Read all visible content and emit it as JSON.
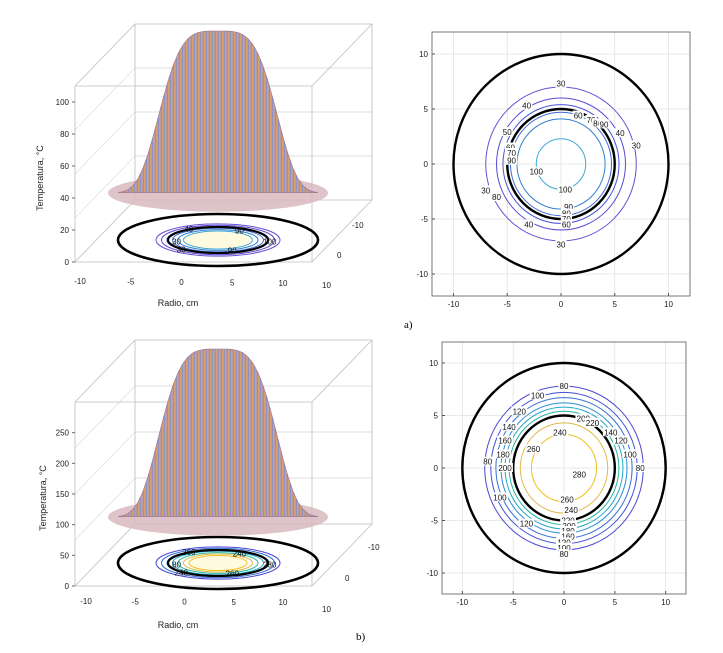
{
  "panel_labels": [
    "a)",
    "b)"
  ],
  "chart_data": [
    {
      "id": "a-surface",
      "type": "surface3d",
      "xlabel": "Radio, cm",
      "zlabel": "Temperatura, °C",
      "x_ticks": [
        "-10",
        "-5",
        "0",
        "5",
        "10"
      ],
      "y_ticks": [
        "-10",
        "0",
        "10"
      ],
      "z_ticks": [
        "0",
        "20",
        "40",
        "60",
        "80",
        "100"
      ],
      "zlim": [
        0,
        110
      ],
      "peak": 100,
      "contour_labels": [
        "30",
        "40",
        "90",
        "100",
        "90",
        "30"
      ]
    },
    {
      "id": "a-contour",
      "type": "contour",
      "xlim": [
        -12,
        12
      ],
      "ylim": [
        -12,
        12
      ],
      "x_ticks": [
        "-10",
        "-5",
        "0",
        "5",
        "10"
      ],
      "y_ticks": [
        "10",
        "5",
        "0",
        "-5",
        "-10"
      ],
      "outer_radius": 10,
      "inner_radius": 5,
      "grid": true,
      "levels": [
        {
          "r": 2.3,
          "color": "#3fa9d6"
        },
        {
          "r": 4.1,
          "color": "#2f7fcf"
        },
        {
          "r": 4.7,
          "color": "#3d6ad6"
        },
        {
          "r": 5.4,
          "color": "#4a55d8"
        },
        {
          "r": 6.0,
          "color": "#5a4ad6"
        },
        {
          "r": 7.0,
          "color": "#6b4fd2"
        }
      ],
      "labels": [
        {
          "text": "30",
          "x": 0,
          "y": 7.3
        },
        {
          "text": "40",
          "x": -3.2,
          "y": 5.3
        },
        {
          "text": "60",
          "x": 1.6,
          "y": 4.4
        },
        {
          "text": "70",
          "x": 2.8,
          "y": 4.0
        },
        {
          "text": "80",
          "x": 3.4,
          "y": 3.7
        },
        {
          "text": "90",
          "x": 4.0,
          "y": 3.6
        },
        {
          "text": "40",
          "x": 5.5,
          "y": 2.8
        },
        {
          "text": "30",
          "x": 7.0,
          "y": 1.7
        },
        {
          "text": "50",
          "x": -5.0,
          "y": 2.9
        },
        {
          "text": "60",
          "x": -4.7,
          "y": 1.5
        },
        {
          "text": "70",
          "x": -4.6,
          "y": 1.0
        },
        {
          "text": "90",
          "x": -4.6,
          "y": 0.3
        },
        {
          "text": "100",
          "x": -2.3,
          "y": -0.7
        },
        {
          "text": "100",
          "x": 0.4,
          "y": -2.3
        },
        {
          "text": "90",
          "x": 0.7,
          "y": -3.9
        },
        {
          "text": "80",
          "x": 0.5,
          "y": -4.5
        },
        {
          "text": "70",
          "x": 0.5,
          "y": -5.0
        },
        {
          "text": "60",
          "x": 0.5,
          "y": -5.5
        },
        {
          "text": "80",
          "x": -6.0,
          "y": -3.0
        },
        {
          "text": "30",
          "x": -7.0,
          "y": -2.4
        },
        {
          "text": "40",
          "x": -3.0,
          "y": -5.5
        },
        {
          "text": "30",
          "x": 0,
          "y": -7.3
        }
      ]
    },
    {
      "id": "b-surface",
      "type": "surface3d",
      "xlabel": "Radio, cm",
      "zlabel": "Temperatura, °C",
      "x_ticks": [
        "-10",
        "-5",
        "0",
        "5",
        "10"
      ],
      "y_ticks": [
        "-10",
        "0",
        "10"
      ],
      "z_ticks": [
        "0",
        "50",
        "100",
        "150",
        "200",
        "250"
      ],
      "zlim": [
        0,
        300
      ],
      "peak": 280,
      "contour_labels": [
        "80",
        "260",
        "240",
        "280",
        "260",
        "240"
      ]
    },
    {
      "id": "b-contour",
      "type": "contour",
      "xlim": [
        -12,
        12
      ],
      "ylim": [
        -12,
        12
      ],
      "x_ticks": [
        "-10",
        "-5",
        "0",
        "5",
        "10"
      ],
      "y_ticks": [
        "10",
        "5",
        "0",
        "-5",
        "-10"
      ],
      "outer_radius": 10,
      "inner_radius": 5,
      "grid": true,
      "levels": [
        {
          "r": 3.2,
          "color": "#f0c020"
        },
        {
          "r": 4.3,
          "color": "#e0b84a"
        },
        {
          "r": 5.4,
          "color": "#22b8a0"
        },
        {
          "r": 5.8,
          "color": "#20a8c8"
        },
        {
          "r": 6.2,
          "color": "#2a8fd6"
        },
        {
          "r": 6.7,
          "color": "#3570d8"
        },
        {
          "r": 7.2,
          "color": "#4050d6"
        },
        {
          "r": 7.8,
          "color": "#4a48d2"
        }
      ],
      "labels": [
        {
          "text": "80",
          "x": 0,
          "y": 7.8
        },
        {
          "text": "100",
          "x": -2.6,
          "y": 6.9
        },
        {
          "text": "120",
          "x": -4.4,
          "y": 5.4
        },
        {
          "text": "140",
          "x": -5.4,
          "y": 3.9
        },
        {
          "text": "160",
          "x": -5.8,
          "y": 2.6
        },
        {
          "text": "180",
          "x": -6.0,
          "y": 1.3
        },
        {
          "text": "200",
          "x": -5.8,
          "y": 0.0
        },
        {
          "text": "240",
          "x": -0.4,
          "y": 3.4
        },
        {
          "text": "260",
          "x": -3.0,
          "y": 1.8
        },
        {
          "text": "200",
          "x": 1.9,
          "y": 4.7
        },
        {
          "text": "220",
          "x": 2.8,
          "y": 4.3
        },
        {
          "text": "140",
          "x": 4.6,
          "y": 3.4
        },
        {
          "text": "120",
          "x": 5.6,
          "y": 2.6
        },
        {
          "text": "100",
          "x": 6.5,
          "y": 1.3
        },
        {
          "text": "80",
          "x": 7.5,
          "y": 0.0
        },
        {
          "text": "80",
          "x": -7.5,
          "y": 0.6
        },
        {
          "text": "100",
          "x": -6.3,
          "y": -2.8
        },
        {
          "text": "120",
          "x": -3.7,
          "y": -5.3
        },
        {
          "text": "280",
          "x": 1.5,
          "y": -0.6
        },
        {
          "text": "260",
          "x": 0.3,
          "y": -3.0
        },
        {
          "text": "240",
          "x": 0.7,
          "y": -4.0
        },
        {
          "text": "220",
          "x": 0.4,
          "y": -5.0
        },
        {
          "text": "200",
          "x": 0.5,
          "y": -5.5
        },
        {
          "text": "180",
          "x": 0.4,
          "y": -6.0
        },
        {
          "text": "160",
          "x": 0.4,
          "y": -6.5
        },
        {
          "text": "120",
          "x": 0.0,
          "y": -7.1
        },
        {
          "text": "100",
          "x": 0.0,
          "y": -7.6
        },
        {
          "text": "80",
          "x": 0.0,
          "y": -8.2
        }
      ]
    }
  ]
}
